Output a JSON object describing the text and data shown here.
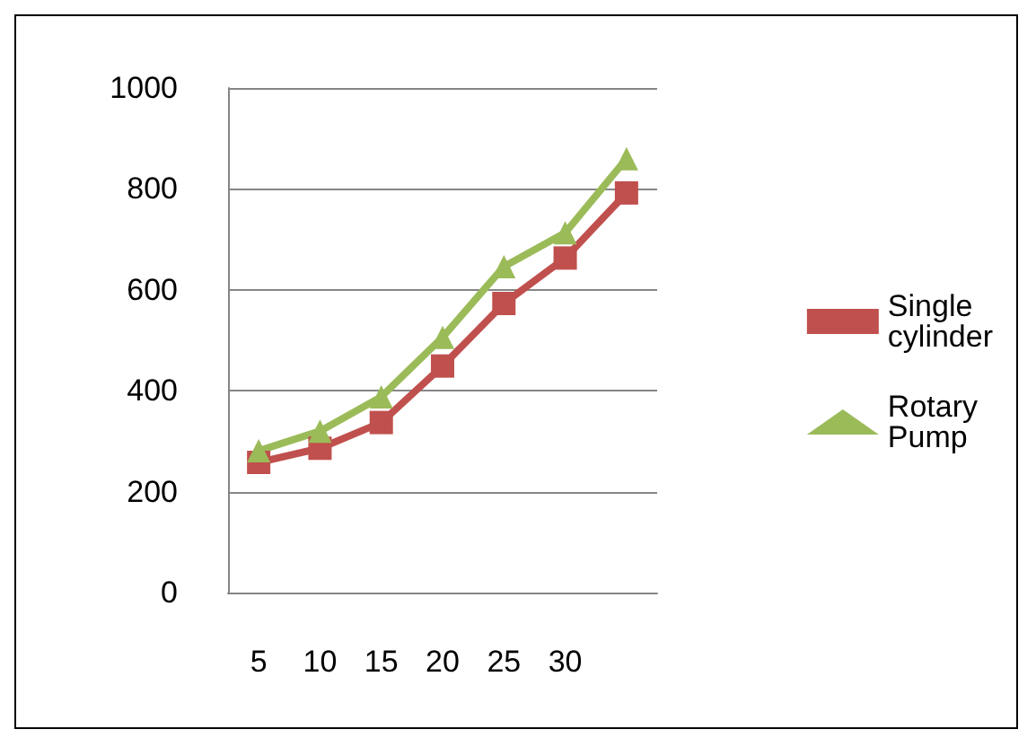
{
  "chart_data": {
    "type": "line",
    "categories": [
      "5",
      "10",
      "15",
      "20",
      "25",
      "30",
      null
    ],
    "series": [
      {
        "name": "Single cylinder",
        "color": "#c0504d",
        "marker": "square",
        "values": [
          258,
          286,
          337,
          449,
          573,
          663,
          792
        ]
      },
      {
        "name": "Rotary Pump",
        "color": "#9bbb59",
        "marker": "triangle",
        "values": [
          281,
          320,
          388,
          506,
          646,
          713,
          860
        ]
      }
    ],
    "ylim": [
      0,
      1000
    ],
    "yticks": [
      0,
      200,
      400,
      600,
      800,
      1000
    ],
    "grid": "y",
    "legend": "right"
  }
}
